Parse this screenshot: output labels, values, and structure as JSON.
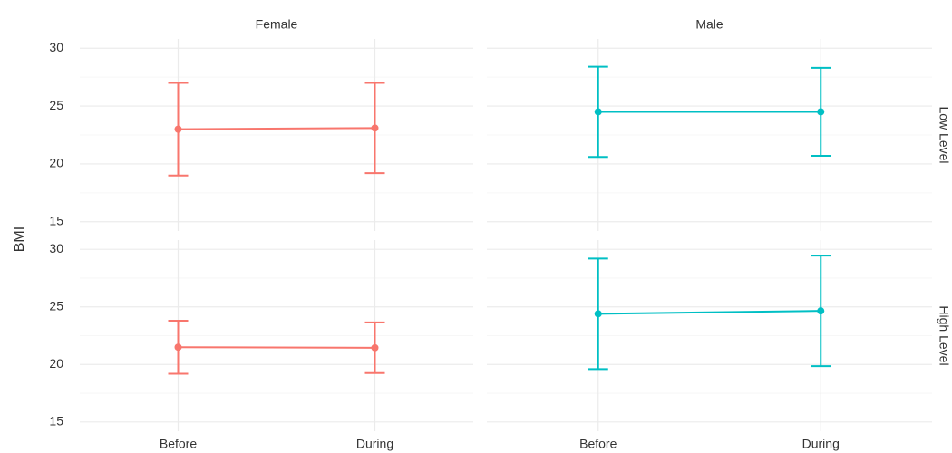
{
  "chart_data": {
    "type": "line",
    "ylabel": "BMI",
    "facet_columns": [
      "Female",
      "Male"
    ],
    "facet_rows": [
      "Low Level",
      "High Level"
    ],
    "categories": [
      "Before",
      "During"
    ],
    "ylim": [
      14.2,
      30.8
    ],
    "yticks": [
      15,
      20,
      25,
      30
    ],
    "grid": true,
    "panels": [
      [
        {
          "color": "#f8766d",
          "values": [
            23.0,
            23.1
          ],
          "errors": [
            4.0,
            3.9
          ]
        },
        {
          "color": "#00bfc4",
          "values": [
            24.5,
            24.5
          ],
          "errors": [
            3.9,
            3.8
          ]
        }
      ],
      [
        {
          "color": "#f8766d",
          "values": [
            21.5,
            21.45
          ],
          "errors": [
            2.3,
            2.2
          ]
        },
        {
          "color": "#00bfc4",
          "values": [
            24.4,
            24.65
          ],
          "errors": [
            4.8,
            4.8
          ]
        }
      ]
    ]
  }
}
